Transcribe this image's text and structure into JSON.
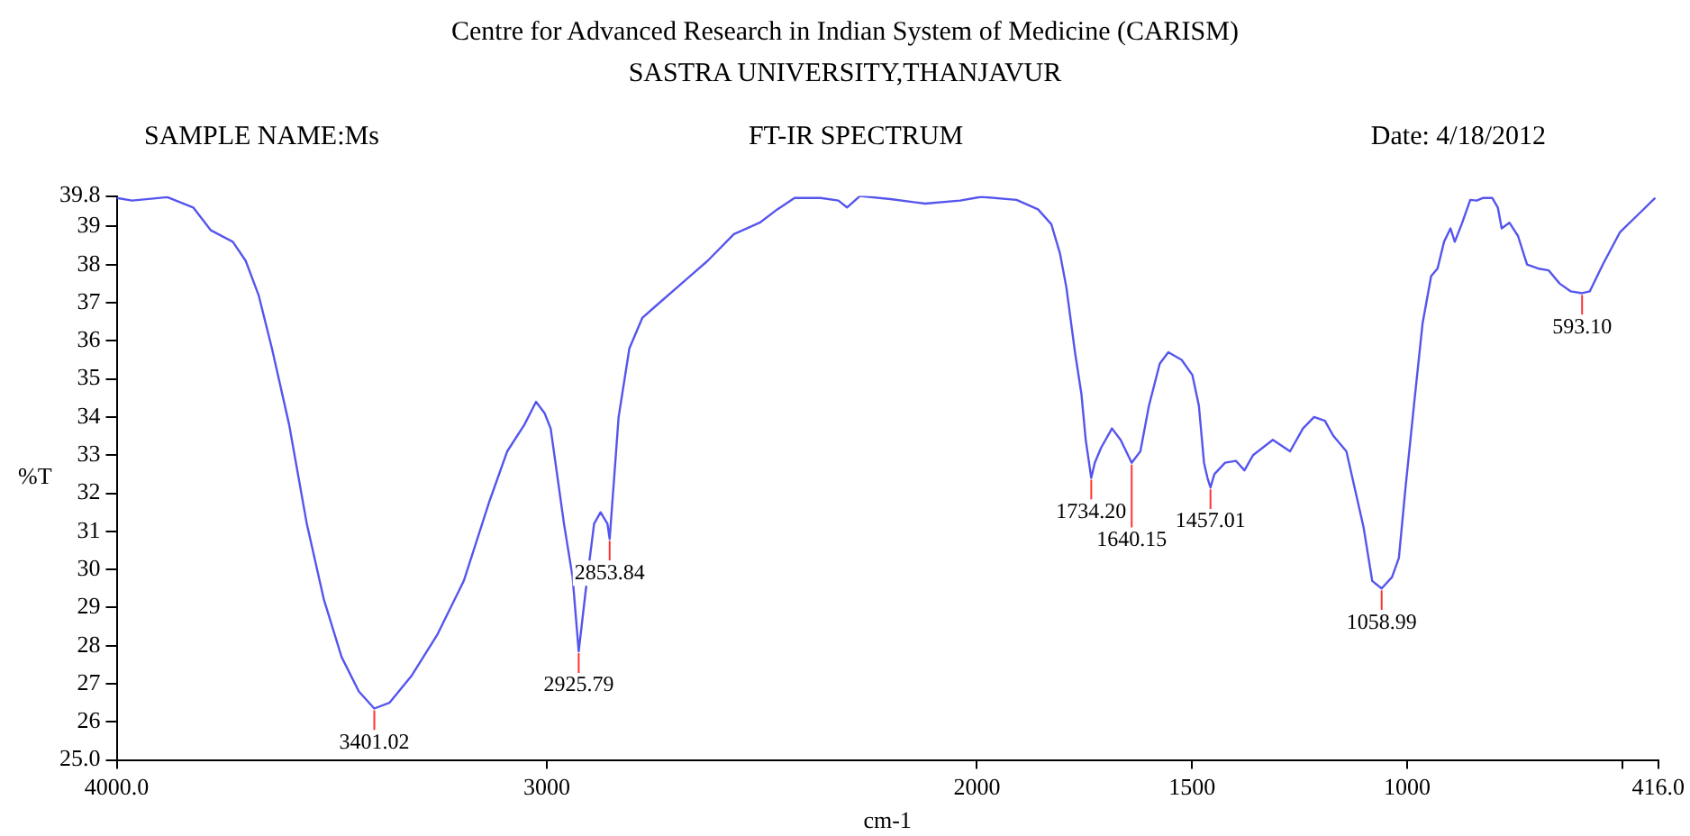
{
  "chart_data": {
    "type": "line",
    "title": "Centre for Advanced Research in Indian System of Medicine (CARISM)",
    "subtitle": "SASTRA UNIVERSITY,THANJAVUR",
    "xlabel": "cm-1",
    "ylabel": "%T",
    "color": "#5555ee",
    "marker": "none",
    "grid": false,
    "legend": false,
    "x": [
      4000,
      3964,
      3882,
      3822,
      3781,
      3730,
      3700,
      3670,
      3639,
      3599,
      3558,
      3518,
      3477,
      3437,
      3401.02,
      3366,
      3315,
      3254,
      3193,
      3133,
      3092,
      3052,
      3025,
      3005,
      2991,
      2960,
      2940,
      2925.79,
      2910,
      2890,
      2875,
      2859,
      2853.84,
      2833,
      2808,
      2778,
      2748,
      2687,
      2626,
      2565,
      2505,
      2464,
      2424,
      2363,
      2322,
      2302,
      2272,
      2201,
      2120,
      2039,
      1990,
      1908,
      1858,
      1827,
      1807,
      1792,
      1772,
      1757,
      1747,
      1734.2,
      1726,
      1711,
      1686,
      1666,
      1640.15,
      1620,
      1600,
      1575,
      1555,
      1524,
      1499,
      1484,
      1472,
      1464,
      1457.01,
      1448,
      1423,
      1398,
      1378,
      1358,
      1312,
      1272,
      1242,
      1216,
      1191,
      1171,
      1141,
      1121,
      1101,
      1081,
      1058.99,
      1035,
      1019,
      1004,
      984,
      964,
      944,
      929,
      914,
      899,
      889,
      873,
      853,
      838,
      823,
      802,
      789,
      780,
      762,
      742,
      721,
      696,
      671,
      645,
      620,
      593.1,
      575,
      545,
      505,
      464,
      423
    ],
    "values": [
      39.75,
      39.68,
      39.77,
      39.5,
      38.9,
      38.6,
      38.1,
      37.2,
      35.8,
      33.8,
      31.2,
      29.2,
      27.7,
      26.8,
      26.35,
      26.5,
      27.2,
      28.3,
      29.7,
      31.8,
      33.1,
      33.8,
      34.4,
      34.1,
      33.7,
      31.2,
      29.8,
      27.85,
      29.4,
      31.2,
      31.5,
      31.2,
      30.8,
      34.0,
      35.8,
      36.6,
      36.9,
      37.5,
      38.1,
      38.8,
      39.1,
      39.45,
      39.75,
      39.75,
      39.68,
      39.5,
      39.8,
      39.72,
      39.6,
      39.68,
      39.78,
      39.7,
      39.45,
      39.06,
      38.3,
      37.4,
      35.7,
      34.6,
      33.4,
      32.4,
      32.8,
      33.2,
      33.7,
      33.4,
      32.8,
      33.1,
      34.3,
      35.4,
      35.7,
      35.5,
      35.1,
      34.3,
      32.8,
      32.4,
      32.15,
      32.5,
      32.8,
      32.85,
      32.6,
      33.0,
      33.4,
      33.1,
      33.7,
      34.0,
      33.9,
      33.5,
      33.1,
      32.1,
      31.1,
      29.7,
      29.5,
      29.8,
      30.3,
      32.1,
      34.3,
      36.45,
      37.7,
      37.9,
      38.6,
      38.95,
      38.6,
      39.06,
      39.7,
      39.68,
      39.75,
      39.75,
      39.5,
      38.95,
      39.1,
      38.75,
      38.0,
      37.9,
      37.85,
      37.5,
      37.3,
      37.25,
      37.3,
      38.0,
      38.85,
      39.3,
      39.75
    ],
    "xlim": [
      4000,
      416
    ],
    "xticks": [
      {
        "value": 4000,
        "label": "4000.0"
      },
      3000,
      2000,
      1500,
      1000,
      {
        "value": 500,
        "label": null
      },
      {
        "value": 416,
        "label": "416.0"
      }
    ],
    "ylim": [
      25,
      39.8
    ],
    "yticks": [
      {
        "value": 25,
        "label": "25.0"
      },
      26,
      27,
      28,
      29,
      30,
      31,
      32,
      33,
      34,
      35,
      36,
      37,
      38,
      39,
      39.8
    ],
    "annotations": [
      "SAMPLE NAME:Ms",
      "FT-IR SPECTRUM",
      "Date: 4/18/2012",
      {
        "text": "3401.02",
        "x": 3401.02,
        "y": 26.35
      },
      {
        "text": "2925.79",
        "x": 2925.79,
        "y": 27.85
      },
      {
        "text": "2853.84",
        "x": 2853.84,
        "y": 30.8
      },
      {
        "text": "1734.20",
        "x": 1734.2,
        "y": 32.4
      },
      {
        "text": "1640.15",
        "x": 1640.15,
        "y": 32.8
      },
      {
        "text": "1457.01",
        "x": 1457.01,
        "y": 32.15
      },
      {
        "text": "1058.99",
        "x": 1058.99,
        "y": 29.5
      },
      {
        "text": "593.10",
        "x": 593.1,
        "y": 37.25
      }
    ]
  }
}
